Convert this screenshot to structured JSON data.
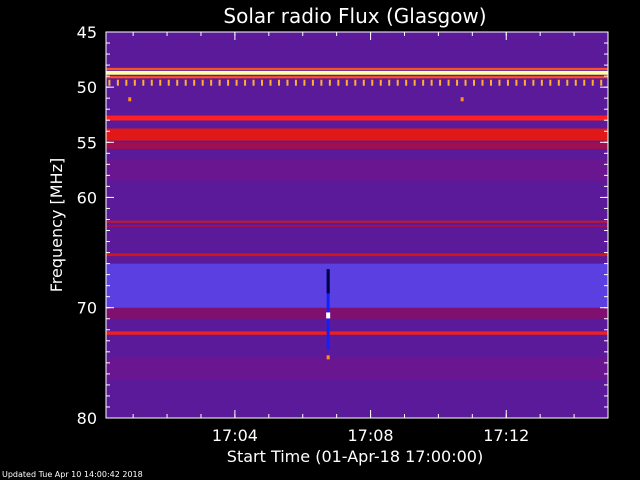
{
  "chart_data": {
    "type": "heatmap",
    "title": "Solar radio Flux (Glasgow)",
    "xlabel": "Start Time (01-Apr-18 17:00:00)",
    "ylabel": "Frequency [MHz]",
    "x_unit": "minutes after 17:00",
    "xlim": [
      0.2,
      15.0
    ],
    "ylim": [
      80,
      45
    ],
    "x_ticks": [
      {
        "value": 4,
        "label": "17:04"
      },
      {
        "value": 8,
        "label": "17:08"
      },
      {
        "value": 12,
        "label": "17:12"
      }
    ],
    "y_ticks": [
      {
        "value": 45,
        "label": "45"
      },
      {
        "value": 50,
        "label": "50"
      },
      {
        "value": 55,
        "label": "55"
      },
      {
        "value": 60,
        "label": "60"
      },
      {
        "value": 70,
        "label": "70"
      },
      {
        "value": 80,
        "label": "80"
      }
    ],
    "background_color": "#5a1a9a",
    "bands": [
      {
        "freq": 48.7,
        "width": 0.35,
        "color": "#ffffa0"
      },
      {
        "freq": 48.35,
        "width": 0.2,
        "color": "#ff5020"
      },
      {
        "freq": 49.1,
        "width": 0.2,
        "color": "#ff5020"
      },
      {
        "freq": 52.8,
        "width": 0.45,
        "color": "#ff2020"
      },
      {
        "freq": 54.3,
        "width": 1.1,
        "color": "#e01818"
      },
      {
        "freq": 55.3,
        "width": 0.6,
        "color": "#a01050"
      },
      {
        "freq": 62.2,
        "width": 0.18,
        "color": "#d01818"
      },
      {
        "freq": 62.6,
        "width": 0.2,
        "color": "#a01050"
      },
      {
        "freq": 65.2,
        "width": 0.25,
        "color": "#d01818"
      },
      {
        "freq": 72.3,
        "width": 0.3,
        "color": "#f02020"
      },
      {
        "freq": 70.5,
        "width": 1.0,
        "color": "#801070"
      },
      {
        "freq": 57.5,
        "width": 2.0,
        "color": "#6a1690"
      },
      {
        "freq": 75.5,
        "width": 2.0,
        "color": "#6a1690"
      }
    ],
    "light_region": {
      "from": 66.0,
      "to": 70.3,
      "color": "#5c3fe0"
    },
    "dots_row": {
      "freq": 49.6,
      "x_start": 0.3,
      "x_end": 14.9,
      "step": 0.25,
      "color": "#ffb030"
    },
    "spots": [
      {
        "x": 0.9,
        "freq": 51.1,
        "color": "#ff9020"
      },
      {
        "x": 10.7,
        "freq": 51.1,
        "color": "#ff9020"
      }
    ],
    "burst": {
      "x": 6.75,
      "freq_from": 66.5,
      "freq_to": 73.8,
      "color": "#1020ff",
      "dark_color": "#000040",
      "white_freq": 70.7,
      "dot_freq": 74.5,
      "dot_color": "#ff9020"
    }
  },
  "footer": {
    "updated": "Updated Tue Apr 10 14:00:42 2018"
  }
}
